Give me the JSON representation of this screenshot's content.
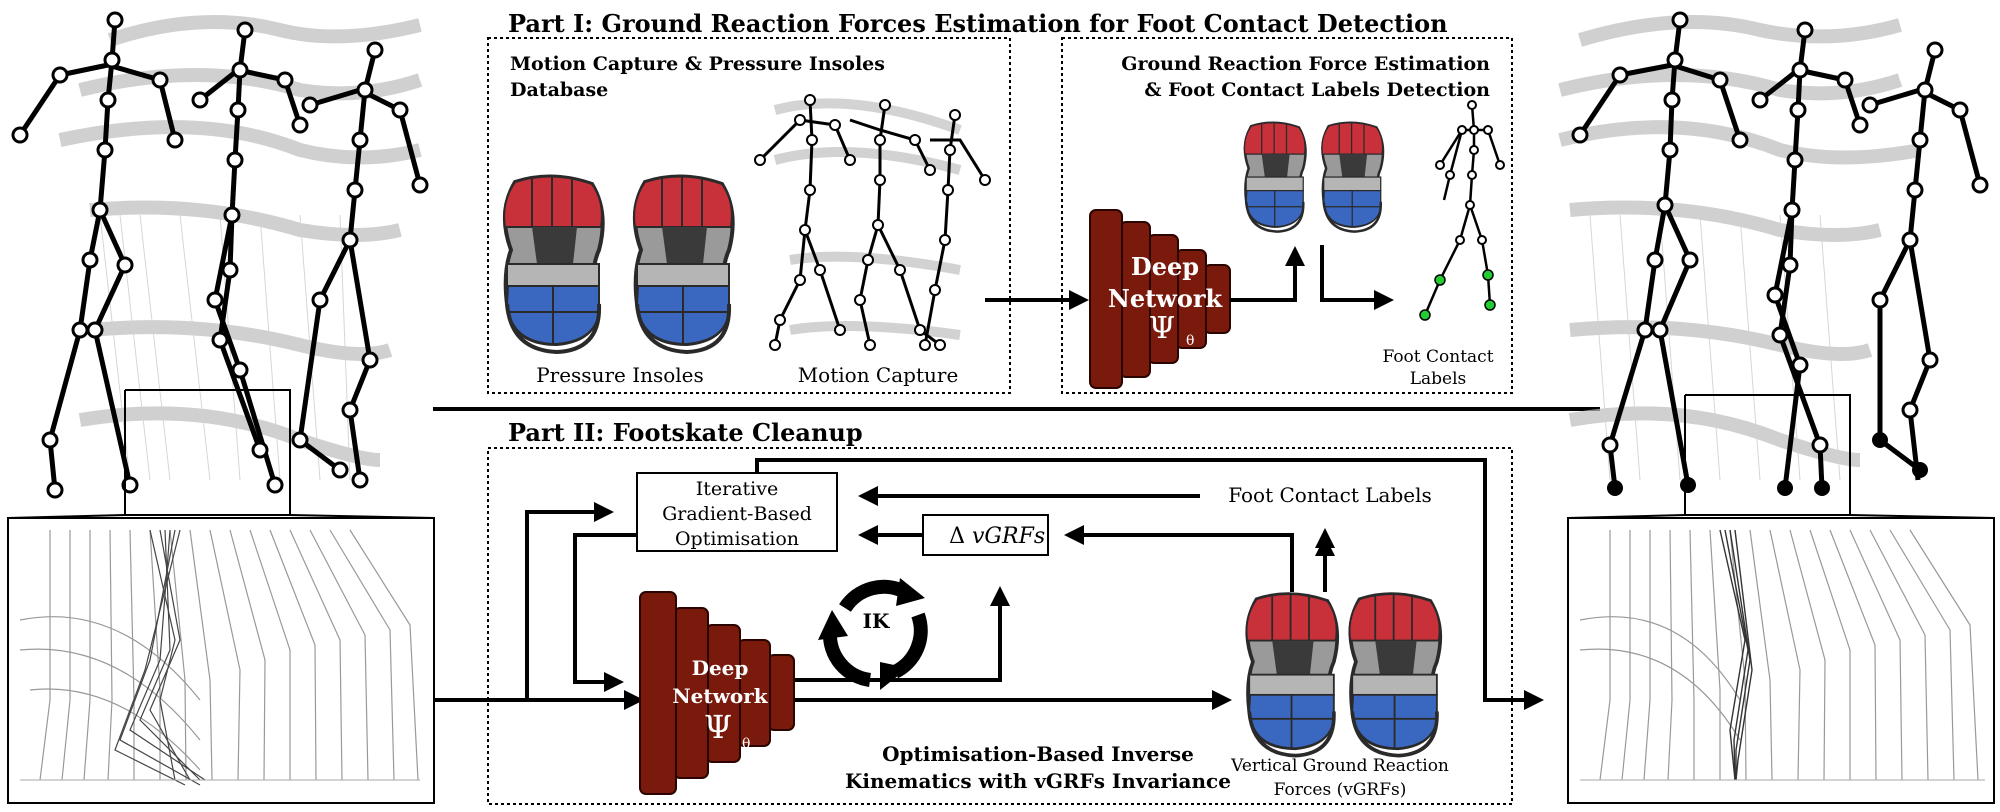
{
  "part1": {
    "title": "Part I: Ground Reaction Forces Estimation for Foot Contact Detection",
    "box1_title_line1": "Motion Capture & Pressure Insoles",
    "box1_title_line2": "Database",
    "pressure_insoles_label": "Pressure Insoles",
    "motion_capture_label": "Motion Capture",
    "box2_title_line1": "Ground Reaction Force Estimation",
    "box2_title_line2": "& Foot Contact Labels Detection",
    "network_line1": "Deep",
    "network_line2": "Network",
    "network_symbol": "Ψ",
    "network_subscript": "θ",
    "foot_contact_line1": "Foot Contact",
    "foot_contact_line2": "Labels"
  },
  "part2": {
    "title": "Part II: Footskate Cleanup",
    "optimisation_line1": "Iterative",
    "optimisation_line2": "Gradient-Based",
    "optimisation_line3": "Optimisation",
    "delta_prefix": "Δ",
    "delta_label": "vGRFs",
    "foot_contact_labels": "Foot Contact Labels",
    "ik_label": "IK",
    "network_line1": "Deep",
    "network_line2": "Network",
    "network_symbol": "Ψ",
    "network_subscript": "θ",
    "caption_line1": "Optimisation-Based Inverse",
    "caption_line2": "Kinematics with vGRFs Invariance",
    "vgrf_line1": "Vertical Ground Reaction",
    "vgrf_line2": "Forces (vGRFs)"
  },
  "colors": {
    "network_fill": "#7a1a0c",
    "network_stroke": "#3a0800",
    "insole_red": "#c8303a",
    "insole_blue": "#3a68c0",
    "insole_gray": "#9a9a9a",
    "insole_dark": "#3a3a3a",
    "contact_green": "#22cc33"
  }
}
